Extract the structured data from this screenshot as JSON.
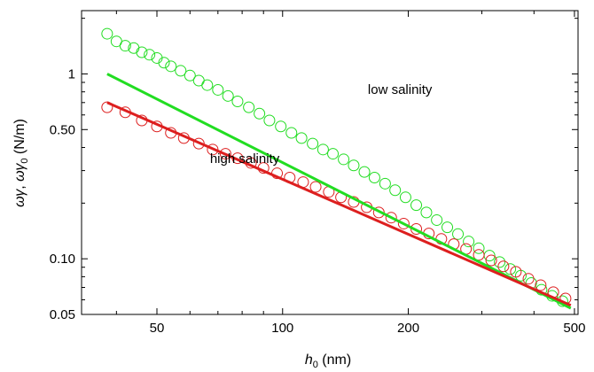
{
  "colors": {
    "low_salinity": "#22dd22",
    "high_salinity": "#dd1f1f",
    "axis": "#000000"
  },
  "chart_data": {
    "type": "scatter",
    "title": "",
    "xlabel": "h0 (nm)",
    "ylabel": "ωγ, ωγ0 (N/m)",
    "xscale": "log",
    "yscale": "log",
    "xlim": [
      33,
      510
    ],
    "ylim": [
      0.05,
      2.2
    ],
    "grid": false,
    "legend": "none",
    "x_ticks": [
      {
        "value": 50,
        "label": "50"
      },
      {
        "value": 100,
        "label": "100"
      },
      {
        "value": 200,
        "label": "200"
      },
      {
        "value": 500,
        "label": "500"
      }
    ],
    "y_ticks": [
      {
        "value": 0.05,
        "label": "0.05"
      },
      {
        "value": 0.1,
        "label": "0.10"
      },
      {
        "value": 0.5,
        "label": "0.50"
      },
      {
        "value": 1,
        "label": "1"
      }
    ],
    "annotations": [
      {
        "text": "low salinity",
        "x": 160,
        "y": 0.78
      },
      {
        "text": "high salinity",
        "x": 67,
        "y": 0.33
      }
    ],
    "series": [
      {
        "key": "low",
        "kind": "points",
        "color_key": "low_salinity",
        "points": [
          [
            38,
            1.65
          ],
          [
            40,
            1.5
          ],
          [
            42,
            1.42
          ],
          [
            44,
            1.38
          ],
          [
            46,
            1.31
          ],
          [
            48,
            1.27
          ],
          [
            50,
            1.22
          ],
          [
            52,
            1.15
          ],
          [
            54,
            1.1
          ],
          [
            57,
            1.04
          ],
          [
            60,
            0.98
          ],
          [
            63,
            0.92
          ],
          [
            66,
            0.87
          ],
          [
            70,
            0.82
          ],
          [
            74,
            0.76
          ],
          [
            78,
            0.71
          ],
          [
            83,
            0.66
          ],
          [
            88,
            0.61
          ],
          [
            93,
            0.56
          ],
          [
            99,
            0.52
          ],
          [
            105,
            0.48
          ],
          [
            111,
            0.45
          ],
          [
            118,
            0.42
          ],
          [
            125,
            0.39
          ],
          [
            132,
            0.37
          ],
          [
            140,
            0.345
          ],
          [
            148,
            0.32
          ],
          [
            157,
            0.295
          ],
          [
            166,
            0.275
          ],
          [
            176,
            0.255
          ],
          [
            186,
            0.235
          ],
          [
            197,
            0.215
          ],
          [
            209,
            0.195
          ],
          [
            221,
            0.178
          ],
          [
            234,
            0.162
          ],
          [
            248,
            0.148
          ],
          [
            263,
            0.136
          ],
          [
            279,
            0.124
          ],
          [
            295,
            0.114
          ],
          [
            313,
            0.104
          ],
          [
            331,
            0.096
          ],
          [
            351,
            0.088
          ],
          [
            372,
            0.081
          ],
          [
            394,
            0.074
          ],
          [
            417,
            0.068
          ],
          [
            442,
            0.063
          ],
          [
            468,
            0.059
          ]
        ]
      },
      {
        "key": "high",
        "kind": "points",
        "color_key": "high_salinity",
        "points": [
          [
            38,
            0.66
          ],
          [
            42,
            0.62
          ],
          [
            46,
            0.56
          ],
          [
            50,
            0.52
          ],
          [
            54,
            0.48
          ],
          [
            58,
            0.45
          ],
          [
            63,
            0.42
          ],
          [
            68,
            0.39
          ],
          [
            73,
            0.37
          ],
          [
            78,
            0.35
          ],
          [
            84,
            0.33
          ],
          [
            90,
            0.31
          ],
          [
            97,
            0.29
          ],
          [
            104,
            0.275
          ],
          [
            112,
            0.26
          ],
          [
            120,
            0.245
          ],
          [
            129,
            0.23
          ],
          [
            138,
            0.215
          ],
          [
            148,
            0.203
          ],
          [
            159,
            0.19
          ],
          [
            170,
            0.178
          ],
          [
            182,
            0.167
          ],
          [
            195,
            0.155
          ],
          [
            209,
            0.145
          ],
          [
            224,
            0.137
          ],
          [
            240,
            0.128
          ],
          [
            257,
            0.12
          ],
          [
            275,
            0.113
          ],
          [
            295,
            0.105
          ],
          [
            316,
            0.098
          ],
          [
            338,
            0.091
          ],
          [
            362,
            0.085
          ],
          [
            388,
            0.078
          ],
          [
            415,
            0.072
          ],
          [
            445,
            0.066
          ],
          [
            476,
            0.061
          ]
        ]
      },
      {
        "key": "low-fit",
        "kind": "line",
        "color_key": "low_salinity",
        "points": [
          [
            38,
            1.0
          ],
          [
            490,
            0.054
          ]
        ]
      },
      {
        "key": "high-fit",
        "kind": "line",
        "color_key": "high_salinity",
        "points": [
          [
            38,
            0.7
          ],
          [
            490,
            0.056
          ]
        ]
      }
    ]
  }
}
